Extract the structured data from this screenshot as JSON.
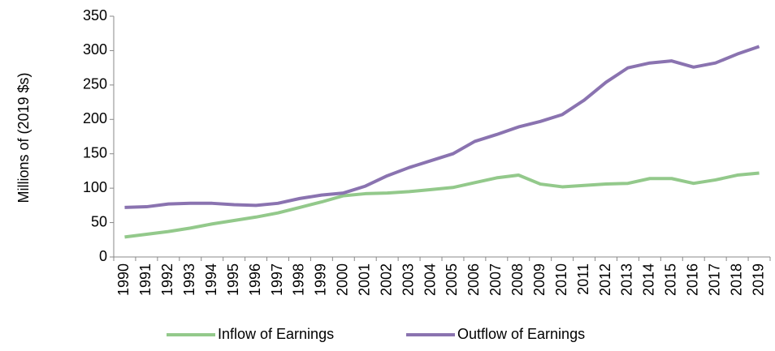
{
  "chart_data": {
    "type": "line",
    "y_label": "Millions of (2019 $s)",
    "categories": [
      "1990",
      "1991",
      "1992",
      "1993",
      "1994",
      "1995",
      "1996",
      "1997",
      "1998",
      "1999",
      "2000",
      "2001",
      "2002",
      "2003",
      "2004",
      "2005",
      "2006",
      "2007",
      "2008",
      "2009",
      "2010",
      "2011",
      "2012",
      "2013",
      "2014",
      "2015",
      "2016",
      "2017",
      "2018",
      "2019"
    ],
    "series": [
      {
        "name": "Inflow of Earnings",
        "color": "#93c98b",
        "values": [
          29,
          33,
          37,
          42,
          48,
          53,
          58,
          64,
          72,
          80,
          89,
          92,
          93,
          95,
          98,
          101,
          108,
          115,
          119,
          106,
          102,
          104,
          106,
          107,
          114,
          114,
          107,
          112,
          119,
          122
        ]
      },
      {
        "name": "Outflow of Earnings",
        "color": "#8a73b0",
        "values": [
          72,
          73,
          77,
          78,
          78,
          76,
          75,
          78,
          85,
          90,
          93,
          103,
          118,
          130,
          140,
          150,
          168,
          178,
          189,
          197,
          207,
          228,
          254,
          275,
          282,
          285,
          276,
          282,
          295,
          306
        ]
      }
    ],
    "ylim": [
      0,
      350
    ],
    "yticks": [
      0,
      50,
      100,
      150,
      200,
      250,
      300,
      350
    ],
    "grid": false,
    "legend": "bottom"
  }
}
